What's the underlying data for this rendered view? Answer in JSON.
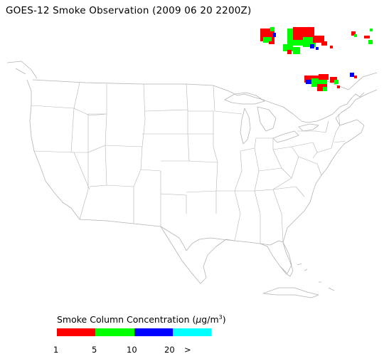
{
  "title": "GOES-12 Smoke Observation (2009 06 20  2200Z)",
  "legend": {
    "title_prefix": "Smoke Column Concentration (",
    "unit_mu": "μ",
    "unit_rest": "g/m",
    "unit_sup": "3",
    "title_suffix": ")",
    "bins": [
      {
        "label": "1",
        "color": "#ff0000"
      },
      {
        "label": "5",
        "color": "#00ff00"
      },
      {
        "label": "10",
        "color": "#0000ff"
      },
      {
        "label": "20",
        "color": "#00ffff"
      }
    ],
    "overflow_label": ">"
  },
  "colors": {
    "map_lines": "#b4b4b4",
    "smoke_low": "#ff0000",
    "smoke_mid": "#00ff00",
    "smoke_high": "#0000ff",
    "smoke_max": "#00ffff"
  }
}
